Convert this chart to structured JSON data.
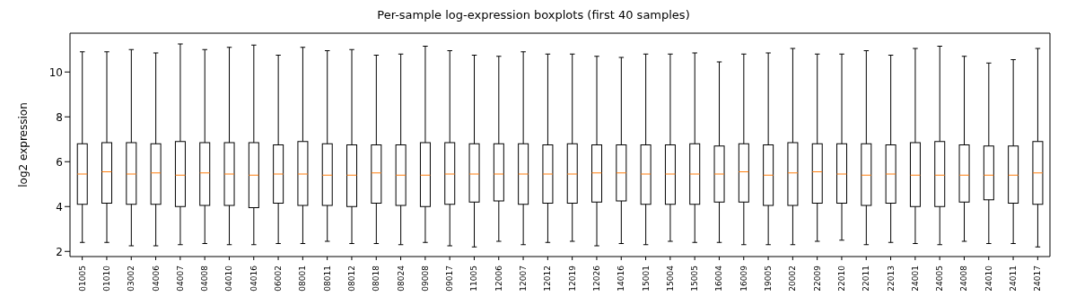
{
  "chart_data": {
    "type": "box",
    "title": "Per-sample log-expression boxplots (first 40 samples)",
    "ylabel": "log2 expression",
    "categories": [
      "01005",
      "01010",
      "03002",
      "04006",
      "04007",
      "04008",
      "04010",
      "04016",
      "06002",
      "08001",
      "08011",
      "08012",
      "08018",
      "08024",
      "09008",
      "09017",
      "11005",
      "12006",
      "12007",
      "12012",
      "12019",
      "12026",
      "14016",
      "15001",
      "15004",
      "15005",
      "16004",
      "16009",
      "19005",
      "20002",
      "22009",
      "22010",
      "22011",
      "22013",
      "24001",
      "24005",
      "24008",
      "24010",
      "24011",
      "24017"
    ],
    "ylim": [
      1.77,
      11.73
    ],
    "yticks": [
      2,
      4,
      6,
      8,
      10
    ],
    "grid": false,
    "series": [
      {
        "color": "#000000",
        "boxes": [
          {
            "low": 2.4,
            "q1": 4.1,
            "median": 5.45,
            "q3": 6.8,
            "high": 10.9
          },
          {
            "low": 2.4,
            "q1": 4.15,
            "median": 5.55,
            "q3": 6.85,
            "high": 10.9
          },
          {
            "low": 2.25,
            "q1": 4.1,
            "median": 5.45,
            "q3": 6.85,
            "high": 11.0
          },
          {
            "low": 2.25,
            "q1": 4.1,
            "median": 5.5,
            "q3": 6.8,
            "high": 10.85
          },
          {
            "low": 2.3,
            "q1": 4.0,
            "median": 5.4,
            "q3": 6.9,
            "high": 11.25
          },
          {
            "low": 2.35,
            "q1": 4.05,
            "median": 5.5,
            "q3": 6.85,
            "high": 11.0
          },
          {
            "low": 2.3,
            "q1": 4.05,
            "median": 5.45,
            "q3": 6.85,
            "high": 11.1
          },
          {
            "low": 2.3,
            "q1": 3.95,
            "median": 5.4,
            "q3": 6.85,
            "high": 11.2
          },
          {
            "low": 2.35,
            "q1": 4.15,
            "median": 5.45,
            "q3": 6.75,
            "high": 10.75
          },
          {
            "low": 2.35,
            "q1": 4.05,
            "median": 5.45,
            "q3": 6.9,
            "high": 11.1
          },
          {
            "low": 2.45,
            "q1": 4.05,
            "median": 5.4,
            "q3": 6.8,
            "high": 10.95
          },
          {
            "low": 2.35,
            "q1": 4.0,
            "median": 5.4,
            "q3": 6.75,
            "high": 11.0
          },
          {
            "low": 2.35,
            "q1": 4.15,
            "median": 5.5,
            "q3": 6.75,
            "high": 10.75
          },
          {
            "low": 2.3,
            "q1": 4.05,
            "median": 5.4,
            "q3": 6.75,
            "high": 10.8
          },
          {
            "low": 2.4,
            "q1": 4.0,
            "median": 5.4,
            "q3": 6.85,
            "high": 11.15
          },
          {
            "low": 2.25,
            "q1": 4.1,
            "median": 5.45,
            "q3": 6.85,
            "high": 10.95
          },
          {
            "low": 2.2,
            "q1": 4.2,
            "median": 5.45,
            "q3": 6.8,
            "high": 10.75
          },
          {
            "low": 2.45,
            "q1": 4.25,
            "median": 5.45,
            "q3": 6.8,
            "high": 10.7
          },
          {
            "low": 2.3,
            "q1": 4.1,
            "median": 5.45,
            "q3": 6.8,
            "high": 10.9
          },
          {
            "low": 2.4,
            "q1": 4.15,
            "median": 5.45,
            "q3": 6.75,
            "high": 10.8
          },
          {
            "low": 2.45,
            "q1": 4.15,
            "median": 5.45,
            "q3": 6.8,
            "high": 10.8
          },
          {
            "low": 2.25,
            "q1": 4.2,
            "median": 5.5,
            "q3": 6.75,
            "high": 10.7
          },
          {
            "low": 2.35,
            "q1": 4.25,
            "median": 5.5,
            "q3": 6.75,
            "high": 10.65
          },
          {
            "low": 2.3,
            "q1": 4.1,
            "median": 5.45,
            "q3": 6.75,
            "high": 10.8
          },
          {
            "low": 2.45,
            "q1": 4.1,
            "median": 5.45,
            "q3": 6.75,
            "high": 10.8
          },
          {
            "low": 2.4,
            "q1": 4.1,
            "median": 5.45,
            "q3": 6.8,
            "high": 10.85
          },
          {
            "low": 2.4,
            "q1": 4.2,
            "median": 5.45,
            "q3": 6.7,
            "high": 10.45
          },
          {
            "low": 2.3,
            "q1": 4.2,
            "median": 5.55,
            "q3": 6.8,
            "high": 10.8
          },
          {
            "low": 2.3,
            "q1": 4.05,
            "median": 5.4,
            "q3": 6.75,
            "high": 10.85
          },
          {
            "low": 2.3,
            "q1": 4.05,
            "median": 5.5,
            "q3": 6.85,
            "high": 11.05
          },
          {
            "low": 2.45,
            "q1": 4.15,
            "median": 5.55,
            "q3": 6.8,
            "high": 10.8
          },
          {
            "low": 2.5,
            "q1": 4.15,
            "median": 5.45,
            "q3": 6.8,
            "high": 10.8
          },
          {
            "low": 2.3,
            "q1": 4.05,
            "median": 5.4,
            "q3": 6.8,
            "high": 10.95
          },
          {
            "low": 2.4,
            "q1": 4.15,
            "median": 5.45,
            "q3": 6.75,
            "high": 10.75
          },
          {
            "low": 2.35,
            "q1": 4.0,
            "median": 5.4,
            "q3": 6.85,
            "high": 11.05
          },
          {
            "low": 2.3,
            "q1": 4.0,
            "median": 5.4,
            "q3": 6.9,
            "high": 11.15
          },
          {
            "low": 2.45,
            "q1": 4.2,
            "median": 5.4,
            "q3": 6.75,
            "high": 10.7
          },
          {
            "low": 2.35,
            "q1": 4.3,
            "median": 5.4,
            "q3": 6.7,
            "high": 10.4
          },
          {
            "low": 2.35,
            "q1": 4.15,
            "median": 5.4,
            "q3": 6.7,
            "high": 10.55
          },
          {
            "low": 2.2,
            "q1": 4.1,
            "median": 5.5,
            "q3": 6.9,
            "high": 11.05
          }
        ]
      }
    ]
  }
}
